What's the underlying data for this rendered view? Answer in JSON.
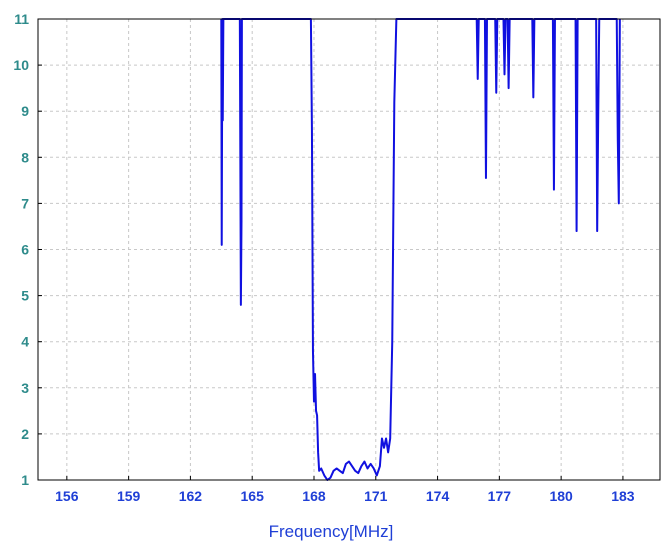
{
  "chart_data": {
    "type": "line",
    "title": "",
    "xlabel": "Frequency[MHz]",
    "ylabel": "",
    "xlim": [
      154.6,
      184.8
    ],
    "ylim": [
      1,
      11
    ],
    "x_ticks": [
      "156",
      "159",
      "162",
      "165",
      "168",
      "171",
      "174",
      "177",
      "180",
      "183"
    ],
    "y_ticks": [
      "1",
      "2",
      "3",
      "4",
      "5",
      "6",
      "7",
      "8",
      "9",
      "10",
      "11"
    ],
    "grid": true,
    "colors": {
      "line": "#1010e0",
      "axis": "#000000",
      "grid": "#c8c8c8",
      "ytick": "#2e8b8b",
      "xtick": "#1f3fd6"
    },
    "series": [
      {
        "x": [
          163.5,
          163.52,
          163.55,
          163.57,
          163.6,
          163.62,
          163.63,
          164.4,
          164.45,
          164.48,
          164.5,
          164.53,
          164.55,
          164.57,
          167.85,
          167.9,
          167.95,
          168.0,
          168.05,
          168.1,
          168.15,
          168.2,
          168.25,
          168.35,
          168.5,
          168.65,
          168.8,
          168.95,
          169.1,
          169.25,
          169.4,
          169.55,
          169.7,
          169.85,
          170.0,
          170.15,
          170.3,
          170.45,
          170.6,
          170.75,
          170.9,
          171.05,
          171.2,
          171.3,
          171.4,
          171.5,
          171.6,
          171.7,
          171.8,
          171.9,
          172.0,
          172.05,
          172.1,
          175.9,
          175.95,
          176.0,
          176.3,
          176.35,
          176.4,
          176.8,
          176.85,
          176.9,
          177.2,
          177.25,
          177.3,
          177.4,
          177.45,
          177.5,
          178.6,
          178.65,
          178.7,
          179.6,
          179.65,
          179.7,
          180.7,
          180.75,
          180.8,
          180.85,
          181.7,
          181.75,
          181.8,
          181.85,
          182.7,
          182.75,
          182.8,
          182.85
        ],
        "values": [
          11,
          6.1,
          11,
          8.8,
          11,
          11,
          11,
          11,
          4.8,
          6.6,
          11,
          11,
          11,
          11,
          11,
          8.6,
          3.8,
          2.7,
          3.3,
          2.5,
          2.4,
          1.6,
          1.2,
          1.25,
          1.1,
          1.0,
          1.05,
          1.2,
          1.25,
          1.2,
          1.15,
          1.35,
          1.4,
          1.3,
          1.2,
          1.15,
          1.3,
          1.4,
          1.25,
          1.35,
          1.25,
          1.1,
          1.3,
          1.9,
          1.7,
          1.9,
          1.6,
          1.9,
          4.0,
          9.2,
          11,
          11,
          11,
          11,
          9.7,
          11,
          11,
          7.55,
          11,
          11,
          9.4,
          11,
          11,
          9.8,
          11,
          11,
          9.5,
          11,
          11,
          9.3,
          11,
          11,
          7.3,
          11,
          11,
          6.4,
          11,
          11,
          11,
          6.4,
          8.9,
          11,
          11,
          8.4,
          7.0,
          11
        ]
      }
    ]
  }
}
